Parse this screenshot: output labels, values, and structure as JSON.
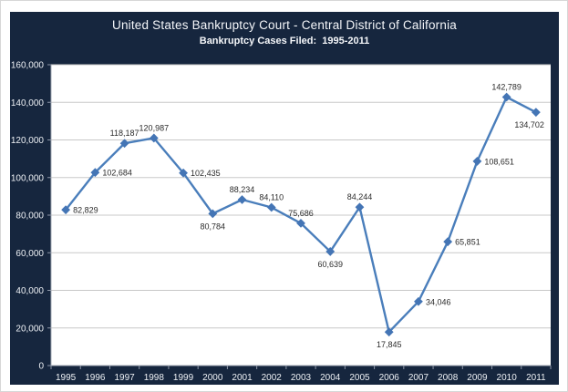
{
  "header": {
    "title": "United States Bankruptcy Court - Central District of California",
    "subtitle": "Bankruptcy Cases Filed:  1995-2011"
  },
  "chart_data": {
    "type": "line",
    "title": "United States Bankruptcy Court - Central District of California",
    "subtitle": "Bankruptcy Cases Filed:  1995-2011",
    "categories": [
      "1995",
      "1996",
      "1997",
      "1998",
      "1999",
      "2000",
      "2001",
      "2002",
      "2003",
      "2004",
      "2005",
      "2006",
      "2007",
      "2008",
      "2009",
      "2010",
      "2011"
    ],
    "series": [
      {
        "name": "Bankruptcy Cases Filed",
        "values": [
          82829,
          102684,
          118187,
          120987,
          102435,
          80784,
          88234,
          84110,
          75686,
          60639,
          84244,
          17845,
          34046,
          65851,
          108651,
          142789,
          134702
        ]
      }
    ],
    "data_labels": [
      "82,829",
      "102,684",
      "118,187",
      "120,987",
      "102,435",
      "80,784",
      "88,234",
      "84,110",
      "75,686",
      "60,639",
      "84,244",
      "17,845",
      "34,046",
      "65,851",
      "108,651",
      "142,789",
      "134,702"
    ],
    "label_positions": [
      "right",
      "right",
      "above",
      "above",
      "right",
      "below",
      "above",
      "above",
      "above",
      "below",
      "above",
      "below",
      "right",
      "right",
      "right",
      "above",
      "below-left"
    ],
    "xlabel": "",
    "ylabel": "",
    "ylim": [
      0,
      160000
    ],
    "ytick_interval": 20000,
    "ytick_labels": [
      "0",
      "20,000",
      "40,000",
      "60,000",
      "80,000",
      "100,000",
      "120,000",
      "140,000",
      "160,000"
    ],
    "grid": true,
    "legend_position": "none",
    "marker": "diamond"
  },
  "colors": {
    "frame_background": "#16263e",
    "plot_background": "#ffffff",
    "line": "#4a7ebb",
    "marker": "#4475b5",
    "gridline": "#c8c8c8",
    "axis_line": "#a3a9b4",
    "tick": "#8d97a8",
    "axis_text": "#eef1f5",
    "data_label_text": "#2b2b2b"
  }
}
